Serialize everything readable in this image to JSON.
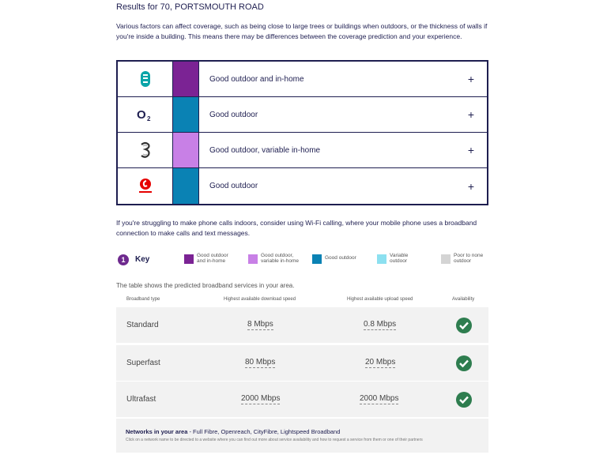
{
  "header": {
    "title": "Results for 70, PORTSMOUTH ROAD"
  },
  "intro": "Various factors can affect coverage, such as being close to large trees or buildings when outdoors, or the thickness of walls if you're inside a building. This means there may be differences between the coverage prediction and your experience.",
  "coverage": [
    {
      "operator": "EE",
      "logo_icon": "ee-logo-icon",
      "color": "#7b2394",
      "status": "Good outdoor and in-home"
    },
    {
      "operator": "O2",
      "logo_icon": "o2-logo-icon",
      "color": "#0a82b4",
      "status": "Good outdoor"
    },
    {
      "operator": "Three",
      "logo_icon": "three-logo-icon",
      "color": "#c880e6",
      "status": "Good outdoor, variable in-home"
    },
    {
      "operator": "Vodafone",
      "logo_icon": "vodafone-logo-icon",
      "color": "#0a82b4",
      "status": "Good outdoor"
    }
  ],
  "wifi_note": "If you're struggling to make phone calls indoors, consider using Wi-Fi calling, where your mobile phone uses a broadband connection to make calls and text messages.",
  "key": {
    "title": "Key",
    "items": [
      {
        "label": "Good outdoor and in-home",
        "color": "#7b2394"
      },
      {
        "label": "Good outdoor, variable in-home",
        "color": "#c880e6"
      },
      {
        "label": "Good outdoor",
        "color": "#0a82b4"
      },
      {
        "label": "Variable outdoor",
        "color": "#8ce0f0"
      },
      {
        "label": "Poor to none outdoor",
        "color": "#d4d4d4"
      }
    ]
  },
  "broadband": {
    "intro": "The table shows the predicted broadband services in your area.",
    "headers": {
      "type": "Broadband type",
      "download": "Highest available download speed",
      "upload": "Highest available upload speed",
      "availability": "Availability"
    },
    "rows": [
      {
        "type": "Standard",
        "download": "8 Mbps",
        "upload": "0.8 Mbps",
        "available_icon": "check-circle-icon"
      },
      {
        "type": "Superfast",
        "download": "80 Mbps",
        "upload": "20 Mbps",
        "available_icon": "check-circle-icon"
      },
      {
        "type": "Ultrafast",
        "download": "2000 Mbps",
        "upload": "2000 Mbps",
        "available_icon": "check-circle-icon"
      }
    ],
    "networks_label": "Networks in your area",
    "networks_list": " - Full Fibre, Openreach, CityFibre, Lightspeed Broadband",
    "networks_note": "Click on a network name to be directed to a website where you can find out more about service availability and how to request a service from them or one of their partners"
  }
}
